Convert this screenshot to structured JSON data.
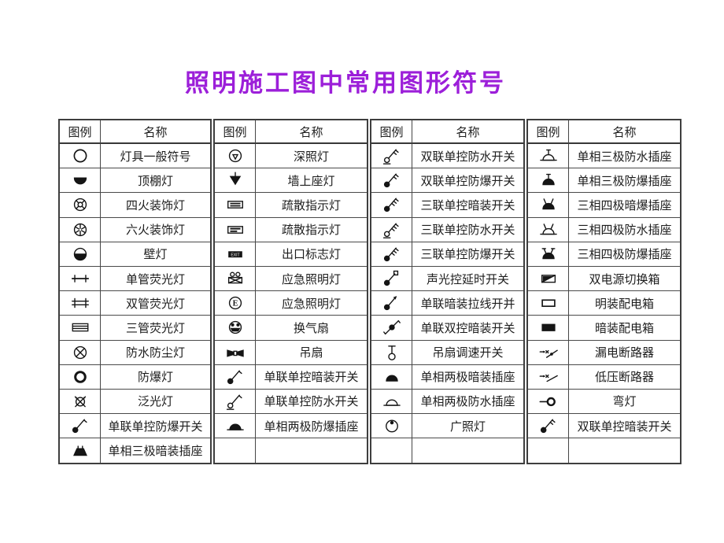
{
  "title": "照明施工图中常用图形符号",
  "colors": {
    "title": "#9c1fd9",
    "border": "#3e3e3e",
    "text": "#1d1d1d"
  },
  "table": {
    "rows_per_group": 13,
    "header": {
      "symbol": "图例",
      "name": "名称"
    },
    "groups": [
      {
        "rows": [
          {
            "icon": "lamp-general",
            "label": "灯具一般符号"
          },
          {
            "icon": "ceiling-lamp",
            "label": "顶棚灯"
          },
          {
            "icon": "four-light-lamp",
            "label": "四火装饰灯"
          },
          {
            "icon": "six-light-lamp",
            "label": "六火装饰灯"
          },
          {
            "icon": "wall-lamp",
            "label": "壁灯"
          },
          {
            "icon": "single-tube-fl",
            "label": "单管荧光灯"
          },
          {
            "icon": "double-tube-fl",
            "label": "双管荧光灯"
          },
          {
            "icon": "triple-tube-fl",
            "label": "三管荧光灯"
          },
          {
            "icon": "waterproof-dustproof-lamp",
            "label": "防水防尘灯"
          },
          {
            "icon": "explosionproof-lamp",
            "label": "防爆灯"
          },
          {
            "icon": "floodlight",
            "label": "泛光灯"
          },
          {
            "icon": "switch-1g-expl",
            "label": "单联单控防爆开关"
          },
          {
            "icon": "socket-1p3w-concealed",
            "label": "单相三极暗装插座"
          }
        ]
      },
      {
        "rows": [
          {
            "icon": "deep-beam-lamp",
            "label": "深照灯"
          },
          {
            "icon": "wall-seat-lamp",
            "label": "墙上座灯"
          },
          {
            "icon": "evac-indicator-a",
            "label": "疏散指示灯"
          },
          {
            "icon": "evac-indicator-b",
            "label": "疏散指示灯"
          },
          {
            "icon": "exit-sign",
            "label": "出口标志灯"
          },
          {
            "icon": "emergency-lamp-a",
            "label": "应急照明灯"
          },
          {
            "icon": "emergency-lamp-e",
            "label": "应急照明灯"
          },
          {
            "icon": "vent-fan",
            "label": "换气扇"
          },
          {
            "icon": "ceiling-fan",
            "label": "吊扇"
          },
          {
            "icon": "switch-1g-concealed",
            "label": "单联单控暗装开关"
          },
          {
            "icon": "switch-1g-wp",
            "label": "单联单控防水开关"
          },
          {
            "icon": "socket-1p2w-expl",
            "label": "单相两极防爆插座"
          }
        ]
      },
      {
        "rows": [
          {
            "icon": "switch-2g-wp",
            "label": "双联单控防水开关"
          },
          {
            "icon": "switch-2g-expl",
            "label": "双联单控防爆开关"
          },
          {
            "icon": "switch-3g-concealed",
            "label": "三联单控暗装开关"
          },
          {
            "icon": "switch-3g-wp",
            "label": "三联单控防水开关"
          },
          {
            "icon": "switch-3g-expl",
            "label": "三联单控防爆开关"
          },
          {
            "icon": "switch-sound-delay",
            "label": "声光控延时开关"
          },
          {
            "icon": "switch-pullcord",
            "label": "单联暗装拉线开并"
          },
          {
            "icon": "switch-1g-2way",
            "label": "单联双控暗装开关"
          },
          {
            "icon": "fan-speed-switch",
            "label": "吊扇调速开关"
          },
          {
            "icon": "socket-1p2w-concealed",
            "label": "单相两极暗装插座"
          },
          {
            "icon": "socket-1p2w-wp",
            "label": "单相两极防水插座"
          },
          {
            "icon": "wide-beam-lamp",
            "label": "广照灯"
          }
        ]
      },
      {
        "rows": [
          {
            "icon": "socket-1p3w-wp",
            "label": "单相三极防水插座"
          },
          {
            "icon": "socket-1p3w-expl",
            "label": "单相三极防爆插座"
          },
          {
            "icon": "socket-3p4w-concealed",
            "label": "三相四极暗爆插座"
          },
          {
            "icon": "socket-3p4w-wp",
            "label": "三相四极防水插座"
          },
          {
            "icon": "socket-3p4w-expl",
            "label": "三相四极防爆插座"
          },
          {
            "icon": "dual-power-box",
            "label": "双电源切换箱"
          },
          {
            "icon": "surface-dist-box",
            "label": "明装配电箱"
          },
          {
            "icon": "concealed-dist-box",
            "label": "暗装配电箱"
          },
          {
            "icon": "rc-breaker",
            "label": "漏电断路器"
          },
          {
            "icon": "lv-breaker",
            "label": "低压断路器"
          },
          {
            "icon": "bent-lamp",
            "label": "弯灯"
          },
          {
            "icon": "switch-2g-concealed",
            "label": "双联单控暗装开关"
          }
        ]
      }
    ]
  }
}
